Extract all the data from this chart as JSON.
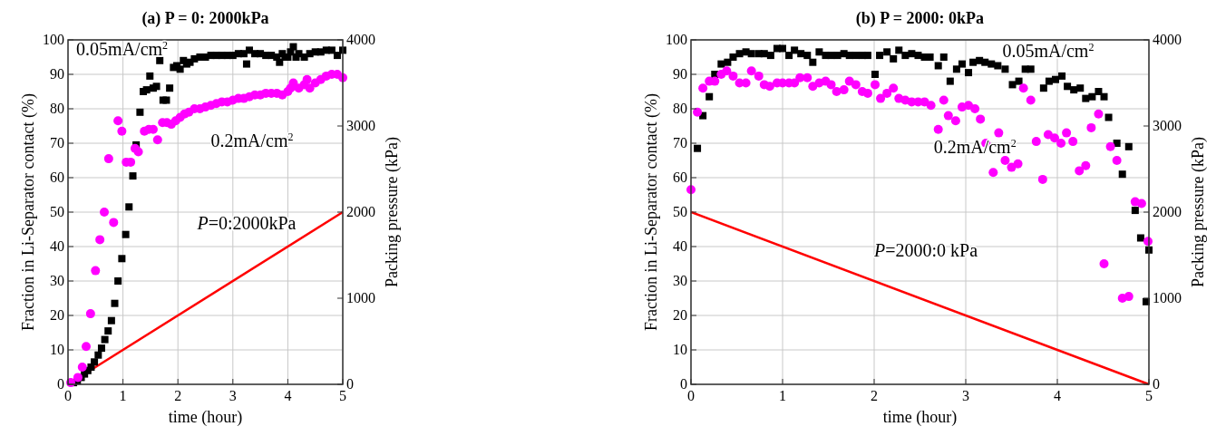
{
  "chart_data": [
    {
      "type": "scatter",
      "title": "(a) P = 0: 2000kPa",
      "xlabel": "time (hour)",
      "ylabel": "Fraction in Li-Separator contact (%)",
      "y2label": "Packing pressure (kPa)",
      "xlim": [
        0,
        5
      ],
      "xticks": [
        0,
        1,
        2,
        3,
        4,
        5
      ],
      "ylim": [
        0,
        100
      ],
      "yticks": [
        0,
        10,
        20,
        30,
        40,
        50,
        60,
        70,
        80,
        90,
        100
      ],
      "y2lim": [
        0,
        4000
      ],
      "y2ticks": [
        0,
        1000,
        2000,
        3000,
        4000
      ],
      "grid": true,
      "series": [
        {
          "type": "scatter",
          "marker": "square",
          "color": "#000000",
          "x": [
            0.1,
            0.17,
            0.24,
            0.3,
            0.36,
            0.42,
            0.48,
            0.55,
            0.61,
            0.67,
            0.73,
            0.79,
            0.85,
            0.91,
            0.98,
            1.05,
            1.11,
            1.18,
            1.24,
            1.31,
            1.37,
            1.43,
            1.49,
            1.55,
            1.61,
            1.67,
            1.73,
            1.79,
            1.85,
            1.92,
            1.98,
            2.04,
            2.1,
            2.16,
            2.22,
            2.3,
            2.4,
            2.5,
            2.6,
            2.7,
            2.8,
            2.9,
            3.0,
            3.1,
            3.2,
            3.25,
            3.3,
            3.4,
            3.5,
            3.6,
            3.7,
            3.8,
            3.85,
            3.9,
            3.95,
            4.0,
            4.05,
            4.1,
            4.15,
            4.2,
            4.3,
            4.4,
            4.5,
            4.6,
            4.7,
            4.8,
            4.9,
            5.0
          ],
          "values": [
            0.5,
            1,
            2,
            3,
            4,
            5,
            6.5,
            8.5,
            10.5,
            13,
            15.5,
            18.5,
            23.5,
            30,
            36.5,
            43.5,
            51.5,
            60.5,
            69.5,
            79,
            85,
            85.5,
            89.5,
            86,
            86.5,
            94,
            82.5,
            82.5,
            86,
            92,
            92.5,
            91.5,
            94,
            93,
            93.5,
            94.5,
            95,
            95,
            95.5,
            95.5,
            95.5,
            95.5,
            95.5,
            96,
            96,
            93,
            97,
            96,
            96,
            95.5,
            95.5,
            95,
            93.5,
            96,
            95,
            95,
            96.5,
            98,
            95,
            96,
            95,
            96,
            96.5,
            96.5,
            97,
            97,
            95.5,
            97
          ]
        },
        {
          "type": "scatter",
          "marker": "circle",
          "color": "#ff00ff",
          "x": [
            0.05,
            0.18,
            0.26,
            0.33,
            0.41,
            0.5,
            0.58,
            0.66,
            0.74,
            0.83,
            0.91,
            0.98,
            1.06,
            1.14,
            1.22,
            1.28,
            1.39,
            1.47,
            1.55,
            1.63,
            1.72,
            1.8,
            1.88,
            1.96,
            2.04,
            2.12,
            2.2,
            2.3,
            2.4,
            2.5,
            2.6,
            2.7,
            2.8,
            2.9,
            3.0,
            3.1,
            3.2,
            3.3,
            3.4,
            3.5,
            3.6,
            3.7,
            3.8,
            3.9,
            4.0,
            4.05,
            4.1,
            4.2,
            4.3,
            4.35,
            4.4,
            4.5,
            4.6,
            4.7,
            4.8,
            4.9,
            5.0
          ],
          "values": [
            0.5,
            2,
            5,
            11,
            20.5,
            33,
            42,
            50,
            65.5,
            47,
            76.5,
            73.5,
            64.5,
            64.5,
            68.5,
            67.5,
            73.5,
            74,
            74,
            71,
            76,
            76,
            75.5,
            76.5,
            77.5,
            78.5,
            79,
            80,
            80,
            80.5,
            81,
            81.5,
            82,
            82,
            82.5,
            83,
            83,
            83.5,
            84,
            84,
            84.5,
            84.5,
            84.5,
            84,
            85,
            86,
            87.5,
            86,
            87,
            88.5,
            86,
            87.5,
            88.5,
            89.5,
            90,
            90,
            89
          ]
        },
        {
          "type": "line",
          "axis": "y2",
          "color": "#ff0000",
          "x": [
            0,
            5
          ],
          "values": [
            0,
            2000
          ]
        }
      ],
      "annotations": [
        "0.05mA/cm$^{2}$",
        "0.2mA/cm$^{2}$",
        "P=0:2000kPa"
      ]
    },
    {
      "type": "scatter",
      "title": "(b) P = 2000: 0kPa",
      "xlabel": "time (hour)",
      "ylabel": "Fraction in Li-Separator contact (%)",
      "y2label": "Packing pressure (kPa)",
      "xlim": [
        0,
        5
      ],
      "xticks": [
        0,
        1,
        2,
        3,
        4,
        5
      ],
      "ylim": [
        0,
        100
      ],
      "yticks": [
        0,
        10,
        20,
        30,
        40,
        50,
        60,
        70,
        80,
        90,
        100
      ],
      "y2lim": [
        0,
        4000
      ],
      "y2ticks": [
        0,
        1000,
        2000,
        3000,
        4000
      ],
      "grid": true,
      "series": [
        {
          "type": "scatter",
          "marker": "square",
          "color": "#000000",
          "x": [
            0.07,
            0.13,
            0.2,
            0.26,
            0.33,
            0.4,
            0.46,
            0.53,
            0.6,
            0.66,
            0.74,
            0.8,
            0.87,
            0.94,
            1.0,
            1.07,
            1.13,
            1.2,
            1.27,
            1.33,
            1.4,
            1.47,
            1.53,
            1.6,
            1.67,
            1.73,
            1.8,
            1.87,
            1.93,
            2.01,
            2.06,
            2.14,
            2.21,
            2.27,
            2.34,
            2.41,
            2.48,
            2.55,
            2.61,
            2.7,
            2.76,
            2.83,
            2.9,
            2.96,
            3.03,
            3.08,
            3.15,
            3.21,
            3.28,
            3.35,
            3.43,
            3.51,
            3.58,
            3.65,
            3.71,
            3.85,
            3.91,
            3.98,
            4.05,
            4.11,
            4.18,
            4.25,
            4.31,
            4.38,
            4.45,
            4.51,
            4.56,
            4.65,
            4.71,
            4.78,
            4.85,
            4.91,
            4.97,
            5.0
          ],
          "values": [
            68.5,
            78,
            83.5,
            90,
            93,
            93.5,
            95,
            96,
            96.5,
            96,
            96,
            96,
            95.5,
            97.5,
            97.5,
            95.5,
            97,
            96,
            95.5,
            93.5,
            96.5,
            95.5,
            95.5,
            95.5,
            96,
            95.5,
            95.5,
            95.5,
            95.5,
            90,
            95.5,
            96.5,
            94.5,
            97,
            95.5,
            96,
            95.5,
            95,
            95,
            92.5,
            95,
            88,
            91.5,
            93,
            90.5,
            93.5,
            94,
            93.5,
            93,
            92.5,
            91.5,
            87,
            88,
            91.5,
            91.5,
            86,
            88,
            88.5,
            89.5,
            86.5,
            85.5,
            86,
            83,
            83.5,
            85,
            83.5,
            77.5,
            70,
            61,
            69,
            50.5,
            42.5,
            24,
            39
          ]
        },
        {
          "type": "scatter",
          "marker": "circle",
          "color": "#ff00ff",
          "x": [
            0,
            0.07,
            0.13,
            0.2,
            0.26,
            0.33,
            0.39,
            0.46,
            0.53,
            0.6,
            0.66,
            0.74,
            0.8,
            0.86,
            0.94,
            1.0,
            1.07,
            1.13,
            1.19,
            1.27,
            1.33,
            1.4,
            1.47,
            1.53,
            1.59,
            1.67,
            1.73,
            1.8,
            1.87,
            1.93,
            2.01,
            2.07,
            2.14,
            2.21,
            2.27,
            2.34,
            2.41,
            2.48,
            2.55,
            2.62,
            2.7,
            2.76,
            2.81,
            2.89,
            2.96,
            3.03,
            3.1,
            3.16,
            3.22,
            3.3,
            3.36,
            3.43,
            3.5,
            3.57,
            3.63,
            3.71,
            3.77,
            3.84,
            3.9,
            3.97,
            4.04,
            4.1,
            4.17,
            4.24,
            4.31,
            4.37,
            4.45,
            4.51,
            4.58,
            4.65,
            4.71,
            4.78,
            4.85,
            4.92,
            4.99
          ],
          "values": [
            56.5,
            79,
            86,
            88,
            88,
            90,
            91,
            89.5,
            87.5,
            87.5,
            91,
            89.5,
            87,
            86.5,
            87.5,
            87.5,
            87.5,
            87.5,
            89,
            89,
            86.5,
            87.5,
            88,
            87,
            85,
            85.5,
            88,
            87,
            85,
            84.5,
            87,
            83,
            84.5,
            86,
            83,
            82.5,
            82,
            82,
            82,
            81,
            74,
            82.5,
            78,
            76.5,
            80.5,
            81,
            80,
            77,
            70,
            61.5,
            73,
            65,
            63,
            64,
            86,
            82.5,
            70.5,
            59.5,
            72.5,
            71.5,
            70,
            73,
            70.5,
            62,
            63.5,
            74.5,
            78.5,
            35,
            69,
            65,
            25,
            25.5,
            53,
            52.5,
            41.5
          ]
        },
        {
          "type": "line",
          "axis": "y2",
          "color": "#ff0000",
          "x": [
            0,
            5
          ],
          "values": [
            2000,
            0
          ]
        }
      ],
      "annotations": [
        "0.05mA/cm$^{2}$",
        "0.2mA/cm$^{2}$",
        "P=2000:0 kPa"
      ]
    }
  ]
}
